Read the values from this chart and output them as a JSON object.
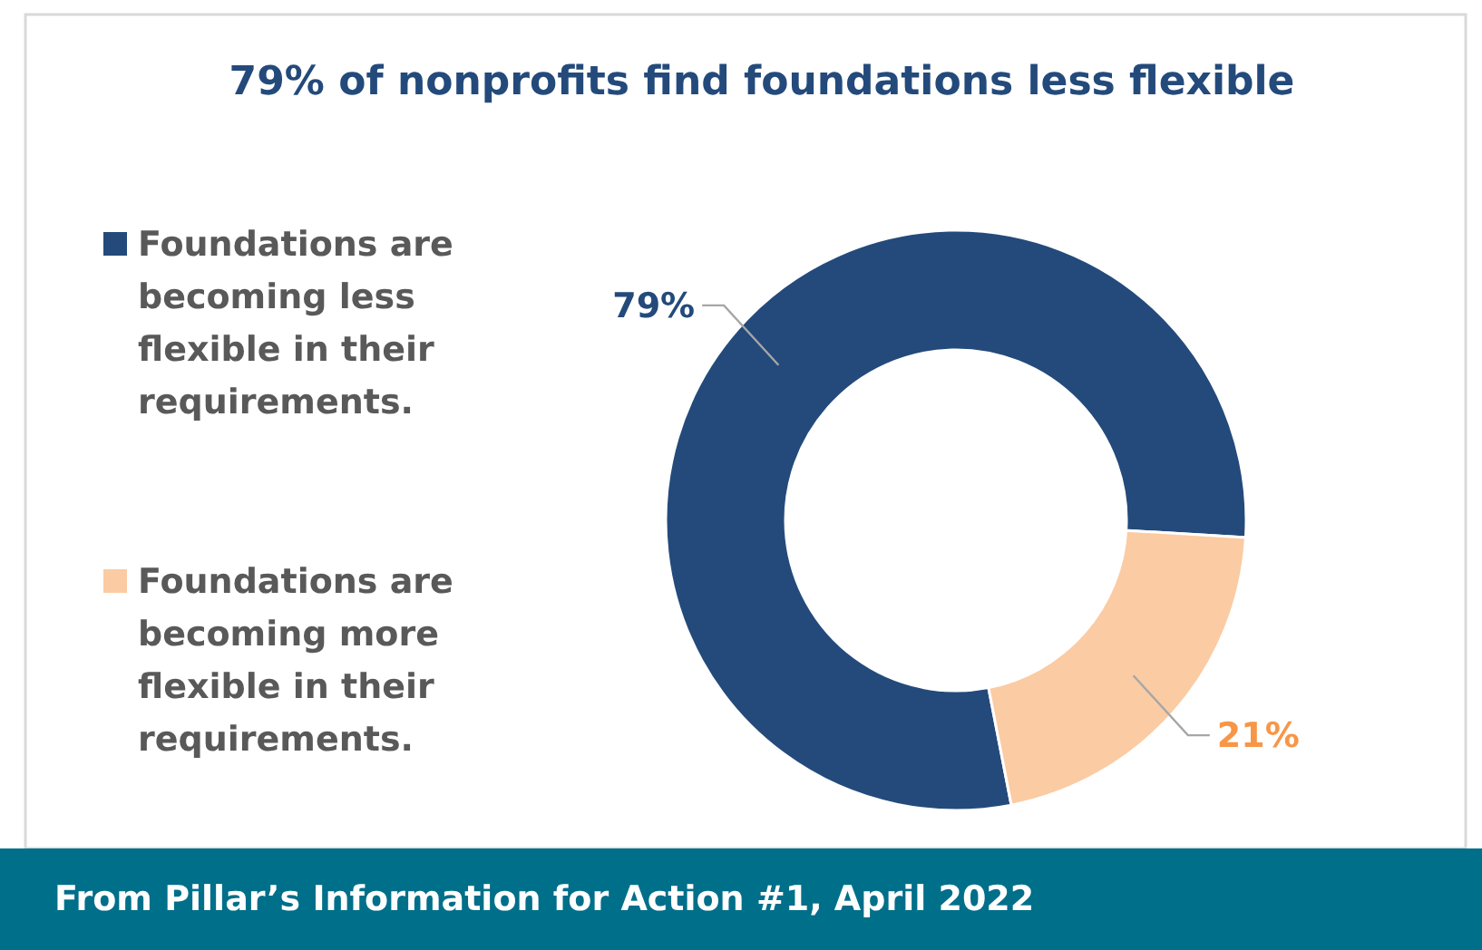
{
  "chart_data": {
    "type": "donut",
    "title": "79% of nonprofits find foundations less flexible",
    "categories": [
      "Foundations are becoming less flexible in their requirements.",
      "Foundations are becoming more flexible in their requirements."
    ],
    "values": [
      79,
      21
    ],
    "colors": [
      "#234a7b",
      "#fbcba3"
    ],
    "value_labels": [
      "79%",
      "21%"
    ],
    "legend": "left",
    "annotations": [
      "From Pillar’s Information for Action #1, April 2022"
    ]
  }
}
